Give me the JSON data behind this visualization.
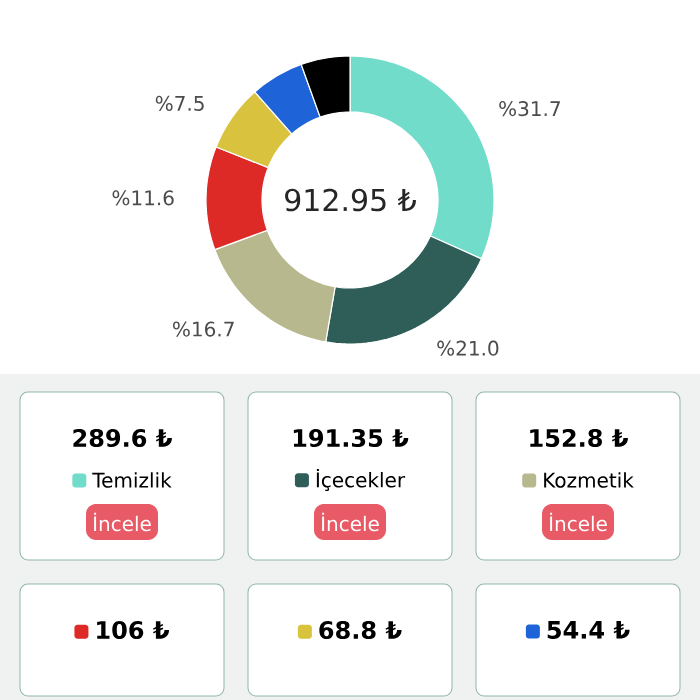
{
  "chart_data": {
    "type": "donut",
    "categories": [
      "Temizlik",
      "İçecekler",
      "Kozmetik",
      null,
      null,
      null,
      null
    ],
    "values": [
      31.7,
      21.0,
      16.7,
      11.6,
      7.5,
      6.0,
      5.5
    ],
    "colors": [
      "#72dccb",
      "#2f5e58",
      "#b8b88e",
      "#dd2a27",
      "#d9c23d",
      "#1f63d8",
      "#000000"
    ],
    "value_labels": [
      "%31.7",
      "%21.0",
      "%16.7",
      "%11.6",
      "%7.5",
      null,
      null
    ],
    "annotations": [
      "912.95 ₺",
      "289.6 ₺",
      "191.35 ₺",
      "152.8 ₺",
      "106 ₺",
      "68.8 ₺",
      "54.4 ₺",
      "İncele",
      "İncele",
      "İncele"
    ],
    "legend": "bottom"
  }
}
